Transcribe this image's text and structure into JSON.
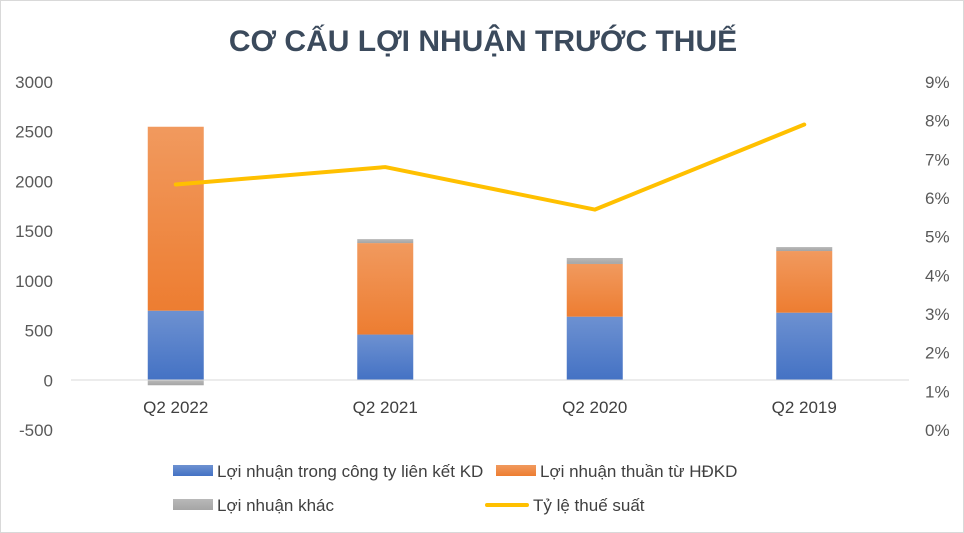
{
  "chart_data": {
    "type": "bar",
    "title": "CƠ CẤU LỢI NHUẬN TRƯỚC THUẾ",
    "categories": [
      "Q2 2022",
      "Q2 2021",
      "Q2 2020",
      "Q2 2019"
    ],
    "stacked": true,
    "ylim": [
      -500,
      3000
    ],
    "y_ticks": [
      "3000",
      "2500",
      "2000",
      "1500",
      "1000",
      "500",
      "0",
      "-500"
    ],
    "y_tick_values": [
      3000,
      2500,
      2000,
      1500,
      1000,
      500,
      0,
      -500
    ],
    "y2lim": [
      0,
      9
    ],
    "y2_ticks": [
      "9%",
      "8%",
      "7%",
      "6%",
      "5%",
      "4%",
      "3%",
      "2%",
      "1%",
      "0%"
    ],
    "y2_tick_values": [
      9,
      8,
      7,
      6,
      5,
      4,
      3,
      2,
      1,
      0
    ],
    "series": [
      {
        "name": "Lợi nhuận trong công ty liên kết KD",
        "type": "bar",
        "axis": "left",
        "color": "#4472C4",
        "values": [
          700,
          460,
          640,
          680
        ]
      },
      {
        "name": "Lợi nhuận thuần từ HĐKD",
        "type": "bar",
        "axis": "left",
        "color": "#ED7D31",
        "values": [
          1850,
          920,
          530,
          620
        ]
      },
      {
        "name": "Lợi nhuận khác",
        "type": "bar",
        "axis": "left",
        "color": "#A5A5A5",
        "values": [
          -50,
          40,
          60,
          40
        ]
      },
      {
        "name": "Tỷ lệ thuế suất",
        "type": "line",
        "axis": "right",
        "color": "#FFC000",
        "values": [
          6.35,
          6.8,
          5.7,
          7.9
        ]
      }
    ],
    "legend": {
      "position": "bottom"
    },
    "grid": false
  }
}
